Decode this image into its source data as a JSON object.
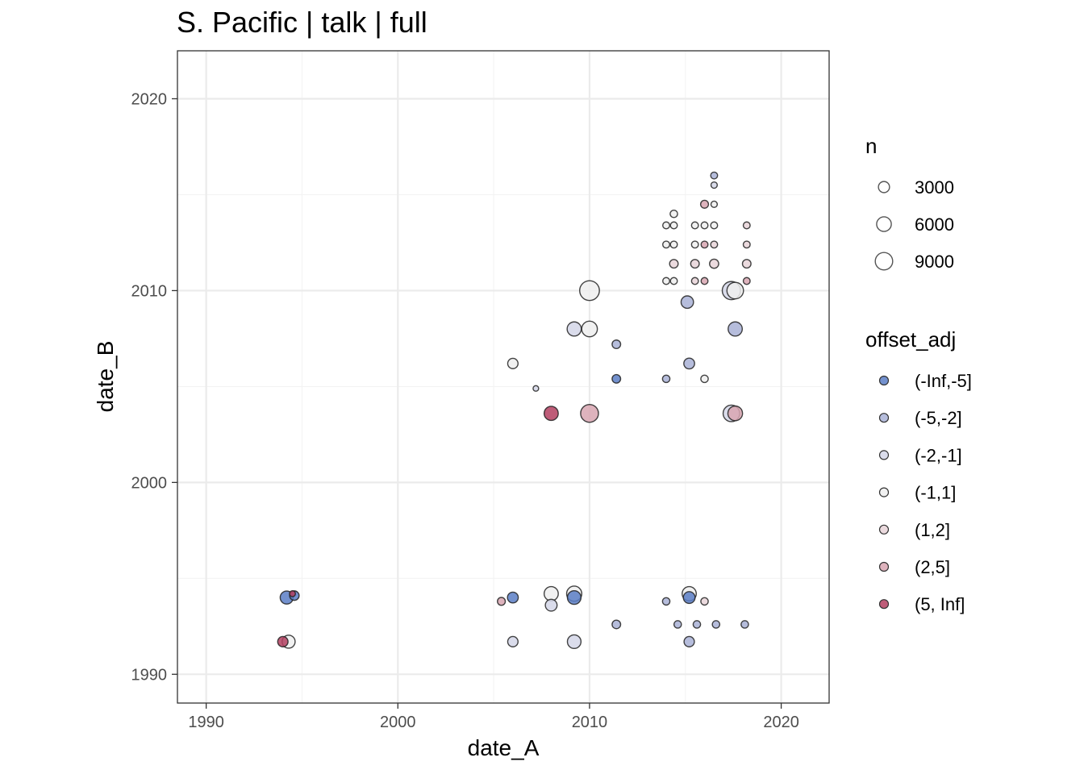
{
  "chart_data": {
    "type": "scatter",
    "title": "S. Pacific | talk | full",
    "xlabel": "date_A",
    "ylabel": "date_B",
    "xlim": [
      1988.5,
      2022.5
    ],
    "ylim": [
      1988.5,
      2022.5
    ],
    "x_ticks": [
      1990,
      2000,
      2010,
      2020
    ],
    "y_ticks": [
      1990,
      2000,
      2010,
      2020
    ],
    "x_tick_labels": [
      "1990",
      "2000",
      "2010",
      "2020"
    ],
    "y_tick_labels": [
      "1990",
      "2000",
      "2010",
      "2020"
    ],
    "grid": true,
    "size_legend": {
      "title": "n",
      "breaks": [
        3000,
        6000,
        9000
      ],
      "labels": [
        "3000",
        "6000",
        "9000"
      ]
    },
    "color_legend": {
      "title": "offset_adj",
      "categories": [
        "(-Inf,-5]",
        "(-5,-2]",
        "(-2,-1]",
        "(-1,1]",
        "(1,2]",
        "(2,5]",
        "(5, Inf]"
      ],
      "colors": [
        "#5b7ec6",
        "#a9b1d6",
        "#d3d6e8",
        "#eeeeee",
        "#e8d4d8",
        "#d8a6b2",
        "#b34060"
      ]
    },
    "points": [
      {
        "x": 1994.2,
        "y": 1994.0,
        "n": 4500,
        "cat": "(-Inf,-5]"
      },
      {
        "x": 1994.6,
        "y": 1994.1,
        "n": 2000,
        "cat": "(-Inf,-5]"
      },
      {
        "x": 1994.5,
        "y": 1994.2,
        "n": 500,
        "cat": "(5, Inf]"
      },
      {
        "x": 1994.3,
        "y": 1991.7,
        "n": 4500,
        "cat": "(-1,1]"
      },
      {
        "x": 1994.0,
        "y": 1991.7,
        "n": 2500,
        "cat": "(5, Inf]"
      },
      {
        "x": 2005.4,
        "y": 1993.8,
        "n": 1200,
        "cat": "(2,5]"
      },
      {
        "x": 2006.0,
        "y": 1994.0,
        "n": 2800,
        "cat": "(-Inf,-5]"
      },
      {
        "x": 2008.0,
        "y": 1994.2,
        "n": 5500,
        "cat": "(-1,1]"
      },
      {
        "x": 2008.0,
        "y": 1993.6,
        "n": 3500,
        "cat": "(-2,-1]"
      },
      {
        "x": 2009.2,
        "y": 1994.2,
        "n": 6500,
        "cat": "(-1,1]"
      },
      {
        "x": 2009.2,
        "y": 1994.0,
        "n": 5000,
        "cat": "(-Inf,-5]"
      },
      {
        "x": 2011.4,
        "y": 1992.6,
        "n": 1500,
        "cat": "(-5,-2]"
      },
      {
        "x": 2006.0,
        "y": 1991.7,
        "n": 2500,
        "cat": "(-2,-1]"
      },
      {
        "x": 2009.2,
        "y": 1991.7,
        "n": 5000,
        "cat": "(-2,-1]"
      },
      {
        "x": 2014.0,
        "y": 1993.8,
        "n": 1000,
        "cat": "(-5,-2]"
      },
      {
        "x": 2015.2,
        "y": 1994.2,
        "n": 5500,
        "cat": "(-1,1]"
      },
      {
        "x": 2015.2,
        "y": 1994.0,
        "n": 3500,
        "cat": "(-Inf,-5]"
      },
      {
        "x": 2016.0,
        "y": 1993.8,
        "n": 1000,
        "cat": "(1,2]"
      },
      {
        "x": 2014.6,
        "y": 1992.6,
        "n": 1000,
        "cat": "(-5,-2]"
      },
      {
        "x": 2015.6,
        "y": 1992.6,
        "n": 1000,
        "cat": "(-5,-2]"
      },
      {
        "x": 2016.6,
        "y": 1992.6,
        "n": 1000,
        "cat": "(-5,-2]"
      },
      {
        "x": 2018.1,
        "y": 1992.6,
        "n": 1000,
        "cat": "(-5,-2]"
      },
      {
        "x": 2015.2,
        "y": 1991.7,
        "n": 2500,
        "cat": "(-5,-2]"
      },
      {
        "x": 2010.0,
        "y": 2010.0,
        "n": 12000,
        "cat": "(-1,1]"
      },
      {
        "x": 2009.2,
        "y": 2008.0,
        "n": 5500,
        "cat": "(-2,-1]"
      },
      {
        "x": 2010.0,
        "y": 2008.0,
        "n": 7000,
        "cat": "(-1,1]"
      },
      {
        "x": 2011.4,
        "y": 2007.2,
        "n": 1500,
        "cat": "(-5,-2]"
      },
      {
        "x": 2006.0,
        "y": 2006.2,
        "n": 2500,
        "cat": "(-1,1]"
      },
      {
        "x": 2011.4,
        "y": 2005.4,
        "n": 1500,
        "cat": "(-Inf,-5]"
      },
      {
        "x": 2007.2,
        "y": 2004.9,
        "n": 400,
        "cat": "(-2,-1]"
      },
      {
        "x": 2008.0,
        "y": 2003.6,
        "n": 5500,
        "cat": "(5, Inf]"
      },
      {
        "x": 2010.0,
        "y": 2003.6,
        "n": 9500,
        "cat": "(2,5]"
      },
      {
        "x": 2015.1,
        "y": 2009.4,
        "n": 4000,
        "cat": "(-5,-2]"
      },
      {
        "x": 2017.4,
        "y": 2010.0,
        "n": 10000,
        "cat": "(-2,-1]"
      },
      {
        "x": 2017.6,
        "y": 2010.0,
        "n": 8000,
        "cat": "(-1,1]"
      },
      {
        "x": 2017.6,
        "y": 2008.0,
        "n": 5500,
        "cat": "(-5,-2]"
      },
      {
        "x": 2015.2,
        "y": 2006.2,
        "n": 2800,
        "cat": "(-5,-2]"
      },
      {
        "x": 2014.0,
        "y": 2005.4,
        "n": 1000,
        "cat": "(-5,-2]"
      },
      {
        "x": 2016.0,
        "y": 2005.4,
        "n": 1000,
        "cat": "(-1,1]"
      },
      {
        "x": 2017.4,
        "y": 2003.6,
        "n": 8000,
        "cat": "(-2,-1]"
      },
      {
        "x": 2017.6,
        "y": 2003.6,
        "n": 6000,
        "cat": "(2,5]"
      },
      {
        "x": 2014.0,
        "y": 2010.5,
        "n": 800,
        "cat": "(-1,1]"
      },
      {
        "x": 2014.4,
        "y": 2010.5,
        "n": 800,
        "cat": "(-1,1]"
      },
      {
        "x": 2015.5,
        "y": 2010.5,
        "n": 800,
        "cat": "(1,2]"
      },
      {
        "x": 2016.0,
        "y": 2010.5,
        "n": 800,
        "cat": "(2,5]"
      },
      {
        "x": 2018.2,
        "y": 2010.5,
        "n": 800,
        "cat": "(2,5]"
      },
      {
        "x": 2014.4,
        "y": 2011.4,
        "n": 1500,
        "cat": "(1,2]"
      },
      {
        "x": 2015.5,
        "y": 2011.4,
        "n": 1500,
        "cat": "(1,2]"
      },
      {
        "x": 2016.5,
        "y": 2011.4,
        "n": 1800,
        "cat": "(1,2]"
      },
      {
        "x": 2018.2,
        "y": 2011.4,
        "n": 1500,
        "cat": "(1,2]"
      },
      {
        "x": 2014.0,
        "y": 2012.4,
        "n": 800,
        "cat": "(-1,1]"
      },
      {
        "x": 2014.4,
        "y": 2012.4,
        "n": 800,
        "cat": "(-1,1]"
      },
      {
        "x": 2015.5,
        "y": 2012.4,
        "n": 800,
        "cat": "(-1,1]"
      },
      {
        "x": 2016.0,
        "y": 2012.4,
        "n": 800,
        "cat": "(2,5]"
      },
      {
        "x": 2016.5,
        "y": 2012.4,
        "n": 800,
        "cat": "(1,2]"
      },
      {
        "x": 2018.2,
        "y": 2012.4,
        "n": 800,
        "cat": "(1,2]"
      },
      {
        "x": 2014.0,
        "y": 2013.4,
        "n": 800,
        "cat": "(-1,1]"
      },
      {
        "x": 2014.4,
        "y": 2013.4,
        "n": 800,
        "cat": "(-1,1]"
      },
      {
        "x": 2015.5,
        "y": 2013.4,
        "n": 800,
        "cat": "(-1,1]"
      },
      {
        "x": 2016.0,
        "y": 2013.4,
        "n": 800,
        "cat": "(-1,1]"
      },
      {
        "x": 2016.5,
        "y": 2013.4,
        "n": 800,
        "cat": "(-1,1]"
      },
      {
        "x": 2018.2,
        "y": 2013.4,
        "n": 800,
        "cat": "(1,2]"
      },
      {
        "x": 2014.4,
        "y": 2014.0,
        "n": 1000,
        "cat": "(-1,1]"
      },
      {
        "x": 2016.0,
        "y": 2014.5,
        "n": 1200,
        "cat": "(2,5]"
      },
      {
        "x": 2016.5,
        "y": 2014.5,
        "n": 600,
        "cat": "(-1,1]"
      },
      {
        "x": 2016.5,
        "y": 2015.5,
        "n": 600,
        "cat": "(-2,-1]"
      },
      {
        "x": 2016.5,
        "y": 2016.0,
        "n": 800,
        "cat": "(-5,-2]"
      }
    ]
  }
}
